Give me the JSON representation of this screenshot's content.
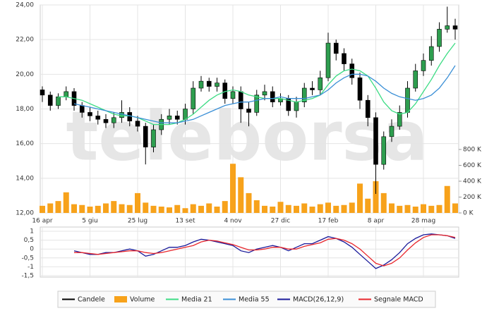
{
  "chart_data": {
    "type": "candlestick",
    "watermark": "teleborsa",
    "x": [
      "16 apr",
      null,
      null,
      null,
      null,
      null,
      "5 giu",
      null,
      null,
      null,
      null,
      null,
      "25 lug",
      null,
      null,
      null,
      null,
      null,
      "13 set",
      null,
      null,
      null,
      null,
      null,
      "4 nov",
      null,
      null,
      null,
      null,
      null,
      "27 dic",
      null,
      null,
      null,
      null,
      null,
      "17 feb",
      null,
      null,
      null,
      null,
      null,
      "8 apr",
      null,
      null,
      null,
      null,
      null,
      "28 mag",
      null,
      null,
      null,
      null
    ],
    "ylim": [
      12,
      24
    ],
    "yticks": [
      {
        "value": 12,
        "label": "12,00"
      },
      {
        "value": 14,
        "label": "14,00"
      },
      {
        "value": 16,
        "label": "16,00"
      },
      {
        "value": 18,
        "label": "18,00"
      },
      {
        "value": 20,
        "label": "20,00"
      },
      {
        "value": 22,
        "label": "22,00"
      },
      {
        "value": 24,
        "label": "24,00"
      }
    ],
    "y2lim": [
      0,
      800000
    ],
    "y2ticks": [
      {
        "value": 0,
        "label": "0 K"
      },
      {
        "value": 200000,
        "label": "200 K"
      },
      {
        "value": 400000,
        "label": "400 K"
      },
      {
        "value": 600000,
        "label": "600 K"
      },
      {
        "value": 800000,
        "label": "800 K"
      }
    ],
    "macd_ylim": [
      -1.5,
      1
    ],
    "macd_yticks": [
      1,
      {
        "value": 0.5,
        "label": "0,5"
      },
      0,
      {
        "value": -0.5,
        "label": "-0,5"
      },
      -1,
      {
        "value": -1.5,
        "label": "-1,5"
      }
    ],
    "grid": true,
    "series": [
      {
        "name": "Candele",
        "color": "#000000",
        "open": [
          19.1,
          18.8,
          18.2,
          18.7,
          19.0,
          18.2,
          17.8,
          17.6,
          17.4,
          17.2,
          17.5,
          17.8,
          17.3,
          17.0,
          15.8,
          16.8,
          17.4,
          17.6,
          17.4,
          18.0,
          19.2,
          19.6,
          19.3,
          19.5,
          18.6,
          19.0,
          18.0,
          17.8,
          18.8,
          19.0,
          18.4,
          18.6,
          17.9,
          18.4,
          19.2,
          19.1,
          19.8,
          21.8,
          21.2,
          20.6,
          19.8,
          18.5,
          17.5,
          14.8,
          16.4,
          17.0,
          17.8,
          19.2,
          20.2,
          20.8,
          21.6,
          22.6,
          22.8
        ],
        "high": [
          19.3,
          19.0,
          18.9,
          19.3,
          19.2,
          18.4,
          18.1,
          17.9,
          17.7,
          17.8,
          18.5,
          18.1,
          17.6,
          17.2,
          17.1,
          17.7,
          18.0,
          17.9,
          18.3,
          19.6,
          19.9,
          19.8,
          19.8,
          19.7,
          19.3,
          19.3,
          18.4,
          19.1,
          19.4,
          19.3,
          18.9,
          18.8,
          18.7,
          19.5,
          19.6,
          20.2,
          22.4,
          22.0,
          21.5,
          20.9,
          20.1,
          18.8,
          17.8,
          16.7,
          17.4,
          18.2,
          19.6,
          20.6,
          21.2,
          22.2,
          23.0,
          23.9,
          23.2
        ],
        "low": [
          18.4,
          17.9,
          18.0,
          18.5,
          17.9,
          17.5,
          17.3,
          17.1,
          16.9,
          16.9,
          17.2,
          17.0,
          16.7,
          14.8,
          15.5,
          16.5,
          17.1,
          17.1,
          17.1,
          17.7,
          19.0,
          19.0,
          19.0,
          18.3,
          18.3,
          17.2,
          17.0,
          17.6,
          18.5,
          18.1,
          18.2,
          17.6,
          17.5,
          18.1,
          18.8,
          18.8,
          19.6,
          20.8,
          20.2,
          19.4,
          18.0,
          17.0,
          13.1,
          14.5,
          16.1,
          16.8,
          17.5,
          19.0,
          19.9,
          20.5,
          21.3,
          22.4,
          22.0
        ],
        "close": [
          18.8,
          18.2,
          18.7,
          19.0,
          18.2,
          17.8,
          17.6,
          17.4,
          17.2,
          17.5,
          17.8,
          17.3,
          17.0,
          15.8,
          16.8,
          17.4,
          17.6,
          17.4,
          18.0,
          19.2,
          19.6,
          19.3,
          19.5,
          18.6,
          19.0,
          18.0,
          17.8,
          18.8,
          19.0,
          18.4,
          18.6,
          17.9,
          18.4,
          19.2,
          19.1,
          19.8,
          21.8,
          21.2,
          20.6,
          19.8,
          18.5,
          17.5,
          14.8,
          16.4,
          17.0,
          17.8,
          19.2,
          20.2,
          20.8,
          21.6,
          22.6,
          22.8,
          22.6
        ]
      },
      {
        "name": "Volume",
        "color": "#f7a21b",
        "axis": "y2",
        "values": [
          90000,
          120000,
          150000,
          260000,
          110000,
          100000,
          80000,
          90000,
          120000,
          150000,
          110000,
          100000,
          250000,
          130000,
          90000,
          80000,
          70000,
          100000,
          60000,
          110000,
          90000,
          120000,
          80000,
          150000,
          620000,
          450000,
          250000,
          160000,
          90000,
          80000,
          140000,
          100000,
          90000,
          120000,
          80000,
          110000,
          130000,
          90000,
          100000,
          130000,
          370000,
          180000,
          400000,
          250000,
          120000,
          90000,
          100000,
          80000,
          110000,
          90000,
          100000,
          340000,
          120000
        ]
      },
      {
        "name": "Media 21",
        "color": "#3ddc84",
        "values": [
          null,
          null,
          18.7,
          18.7,
          18.6,
          18.5,
          18.3,
          18.1,
          17.9,
          17.7,
          17.6,
          17.6,
          17.5,
          17.3,
          17.1,
          17.1,
          17.1,
          17.2,
          17.4,
          17.7,
          18.1,
          18.5,
          18.8,
          19.0,
          19.1,
          19.0,
          18.8,
          18.7,
          18.6,
          18.6,
          18.6,
          18.5,
          18.4,
          18.5,
          18.6,
          18.8,
          19.4,
          19.9,
          20.2,
          20.3,
          20.2,
          19.9,
          19.2,
          18.4,
          17.9,
          17.7,
          17.8,
          18.3,
          19.0,
          19.7,
          20.5,
          21.2,
          21.8
        ]
      },
      {
        "name": "Media 55",
        "color": "#3a8fd6",
        "values": [
          null,
          null,
          null,
          null,
          18.3,
          18.2,
          18.1,
          18.0,
          17.9,
          17.8,
          17.7,
          17.6,
          17.5,
          17.4,
          17.3,
          17.2,
          17.2,
          17.2,
          17.3,
          17.4,
          17.6,
          17.8,
          18.0,
          18.2,
          18.3,
          18.4,
          18.4,
          18.5,
          18.6,
          18.6,
          18.7,
          18.6,
          18.6,
          18.6,
          18.7,
          18.8,
          19.1,
          19.5,
          19.8,
          20.0,
          20.0,
          19.9,
          19.6,
          19.2,
          18.9,
          18.7,
          18.6,
          18.5,
          18.6,
          18.8,
          19.2,
          19.8,
          20.5
        ]
      },
      {
        "name": "MACD(26,12,9)",
        "color": "#1a1a9a",
        "panel": "macd",
        "values": [
          null,
          null,
          null,
          null,
          -0.1,
          -0.2,
          -0.3,
          -0.3,
          -0.2,
          -0.2,
          -0.1,
          0,
          -0.1,
          -0.4,
          -0.3,
          -0.1,
          0.1,
          0.1,
          0.2,
          0.4,
          0.55,
          0.5,
          0.4,
          0.3,
          0.2,
          -0.1,
          -0.2,
          0,
          0.1,
          0.2,
          0.1,
          -0.1,
          0.1,
          0.3,
          0.3,
          0.5,
          0.7,
          0.6,
          0.4,
          0.1,
          -0.3,
          -0.7,
          -1.1,
          -0.9,
          -0.6,
          -0.2,
          0.3,
          0.6,
          0.8,
          0.85,
          0.8,
          0.75,
          0.6
        ]
      },
      {
        "name": "Segnale MACD",
        "color": "#e8262c",
        "panel": "macd",
        "values": [
          null,
          null,
          null,
          null,
          -0.2,
          -0.2,
          -0.25,
          -0.3,
          -0.25,
          -0.2,
          -0.15,
          -0.1,
          -0.1,
          -0.2,
          -0.25,
          -0.2,
          -0.1,
          0,
          0.1,
          0.2,
          0.4,
          0.5,
          0.45,
          0.35,
          0.25,
          0.1,
          -0.05,
          -0.05,
          0,
          0.1,
          0.1,
          0,
          0,
          0.15,
          0.25,
          0.35,
          0.55,
          0.6,
          0.5,
          0.3,
          0,
          -0.4,
          -0.8,
          -0.95,
          -0.8,
          -0.5,
          -0.05,
          0.35,
          0.65,
          0.8,
          0.8,
          0.75,
          0.65
        ]
      }
    ]
  }
}
